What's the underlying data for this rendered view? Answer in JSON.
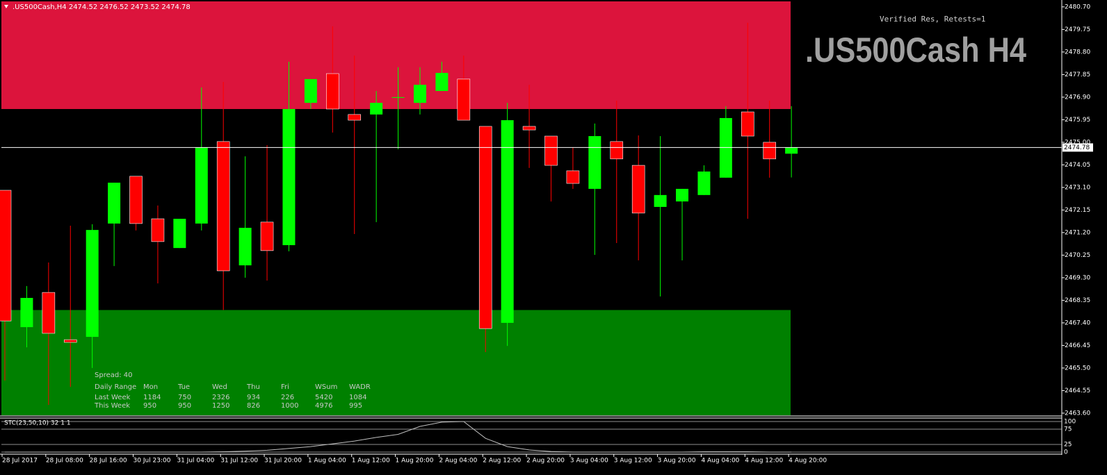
{
  "chart_data": [
    {
      "type": "candlestick",
      "header": ".US500Cash,H4  2474.52 2476.52 2473.52 2474.78",
      "title": ".US500Cash H4",
      "annotation": "Verified Res, Retests=1",
      "categories": [
        "28 Jul 2017",
        null,
        "28 Jul 08:00",
        null,
        "28 Jul 16:00",
        null,
        "30 Jul 23:00",
        null,
        "31 Jul 04:00",
        null,
        "31 Jul 12:00",
        null,
        "31 Jul 20:00",
        null,
        "1 Aug 04:00",
        null,
        "1 Aug 12:00",
        null,
        "1 Aug 20:00",
        null,
        "2 Aug 04:00",
        null,
        "2 Aug 12:00",
        null,
        "2 Aug 20:00",
        null,
        "3 Aug 04:00",
        null,
        "3 Aug 12:00",
        null,
        "3 Aug 20:00",
        null,
        "4 Aug 04:00",
        null,
        "4 Aug 12:00",
        null,
        "4 Aug 20:00"
      ],
      "open": [
        2472.98,
        2467.22,
        2468.68,
        2466.69,
        2466.81,
        2471.58,
        2473.57,
        2471.78,
        2470.55,
        2471.58,
        2475.03,
        2469.82,
        2471.64,
        2470.67,
        2476.66,
        2477.89,
        2476.17,
        2476.17,
        2476.87,
        2476.66,
        2477.16,
        2477.66,
        2475.67,
        2467.4,
        2475.67,
        2475.26,
        2473.8,
        2473.04,
        2475.03,
        2474.03,
        2472.28,
        2472.51,
        2472.78,
        2473.51,
        2476.28,
        2475.0,
        2474.52
      ],
      "high": [
        2472.98,
        2468.95,
        2469.94,
        2471.49,
        2471.55,
        2473.3,
        2473.57,
        2472.34,
        2471.78,
        2477.31,
        2477.54,
        2474.41,
        2474.88,
        2478.39,
        2477.66,
        2479.88,
        2478.65,
        2477.16,
        2478.16,
        2478.16,
        2478.39,
        2478.65,
        2475.67,
        2476.66,
        2477.42,
        2475.26,
        2474.79,
        2475.79,
        2476.75,
        2475.29,
        2475.26,
        2473.04,
        2474.03,
        2476.52,
        2480.03,
        2476.75,
        2476.52
      ],
      "low": [
        2464.97,
        2466.37,
        2463.95,
        2464.71,
        2465.5,
        2469.79,
        2471.29,
        2469.06,
        2470.55,
        2471.29,
        2467.94,
        2469.3,
        2469.18,
        2470.41,
        2476.4,
        2475.41,
        2471.14,
        2471.64,
        2474.71,
        2476.17,
        2477.16,
        2475.93,
        2466.17,
        2466.43,
        2473.92,
        2472.51,
        2473.04,
        2470.26,
        2470.76,
        2470.03,
        2468.51,
        2470.03,
        2472.78,
        2473.51,
        2471.78,
        2473.51,
        2473.52
      ],
      "close": [
        2467.48,
        2468.45,
        2466.96,
        2466.58,
        2471.31,
        2473.3,
        2471.58,
        2470.82,
        2471.78,
        2474.79,
        2469.59,
        2471.4,
        2470.44,
        2476.4,
        2477.66,
        2476.4,
        2475.93,
        2476.66,
        2476.9,
        2477.42,
        2477.92,
        2475.93,
        2467.16,
        2475.93,
        2475.52,
        2474.03,
        2473.27,
        2475.26,
        2474.3,
        2472.02,
        2472.78,
        2473.04,
        2473.77,
        2476.02,
        2475.26,
        2474.3,
        2474.78
      ],
      "up_color": "#00ff00",
      "down_color": "#ff0000",
      "zones": [
        {
          "color": "#dc143c",
          "low": 2476.4,
          "high": 2480.93
        },
        {
          "color": "#008000",
          "low": 2463.51,
          "high": 2467.94
        }
      ],
      "current_price": {
        "value": 2474.78,
        "label": "2474.78"
      },
      "ylim": [
        2463.51,
        2480.93
      ],
      "yticks": [
        {
          "value": 2480.7,
          "label": "2480.70"
        },
        2479.75,
        {
          "value": 2478.8,
          "label": "2478.80"
        },
        2477.85,
        {
          "value": 2476.9,
          "label": "2476.90"
        },
        2475.95,
        {
          "value": 2475,
          "label": "2475.00"
        },
        2474.05,
        {
          "value": 2473.1,
          "label": "2473.10"
        },
        2472.15,
        {
          "value": 2471.2,
          "label": "2471.20"
        },
        2470.25,
        {
          "value": 2469.3,
          "label": "2469.30"
        },
        2468.35,
        {
          "value": 2467.4,
          "label": "2467.40"
        },
        2466.45,
        {
          "value": 2465.5,
          "label": "2465.50"
        },
        2464.55,
        {
          "value": 2463.6,
          "label": "2463.60"
        }
      ],
      "info_table": {
        "spread": "Spread: 40",
        "columns": [
          "Daily Range",
          "Mon",
          "Tue",
          "Wed",
          "Thu",
          "Fri",
          "WSum",
          "WADR"
        ],
        "rows": [
          [
            "Last Week",
            "1184",
            "750",
            "2326",
            "934",
            "226",
            "5420",
            "1084"
          ],
          [
            "This Week",
            "950",
            "950",
            "1250",
            "826",
            "1000",
            "4976",
            "995"
          ]
        ]
      }
    },
    {
      "type": "line",
      "title": "STC(23,50,10) 32 1 1",
      "color": "#c0c0c0",
      "values": [
        0,
        0,
        0,
        0,
        0,
        0,
        0,
        0,
        0,
        0,
        1,
        3,
        6,
        12,
        18,
        27,
        36,
        48,
        58,
        84,
        98,
        100,
        45,
        18,
        7,
        2,
        0,
        0,
        0,
        0,
        0,
        0,
        1,
        1,
        1,
        0,
        0
      ],
      "ylim": [
        0,
        100
      ],
      "yticks": [
        0,
        25,
        75,
        100
      ]
    }
  ]
}
